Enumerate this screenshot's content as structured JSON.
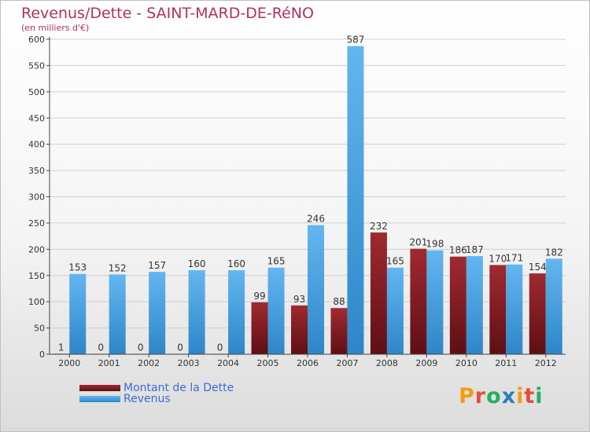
{
  "chart_data": {
    "type": "bar",
    "title": "Revenus/Dette - SAINT-MARD-DE-RéNO",
    "subtitle": "(en milliers d'€)",
    "categories": [
      "2000",
      "2001",
      "2002",
      "2003",
      "2004",
      "2005",
      "2006",
      "2007",
      "2008",
      "2009",
      "2010",
      "2011",
      "2012"
    ],
    "series": [
      {
        "name": "Montant de la Dette",
        "color": "#7a1a1f",
        "values": [
          1,
          0,
          0,
          0,
          0,
          99,
          93,
          88,
          232,
          201,
          186,
          170,
          154
        ]
      },
      {
        "name": "Revenus",
        "color": "#4fa3e0",
        "values": [
          153,
          152,
          157,
          160,
          160,
          165,
          246,
          587,
          165,
          198,
          187,
          171,
          182
        ]
      }
    ],
    "ylim": [
      0,
      600
    ],
    "yticks": [
      0,
      50,
      100,
      150,
      200,
      250,
      300,
      350,
      400,
      450,
      500,
      550,
      600
    ],
    "grid": true,
    "legend_position": "bottom-left"
  },
  "logo": {
    "letters": [
      "P",
      "r",
      "o",
      "x",
      "i",
      "t",
      "i"
    ],
    "colors": [
      "#f39c12",
      "#e74c3c",
      "#27ae60",
      "#2980b9",
      "#f39c12",
      "#e74c3c",
      "#27ae60"
    ]
  }
}
